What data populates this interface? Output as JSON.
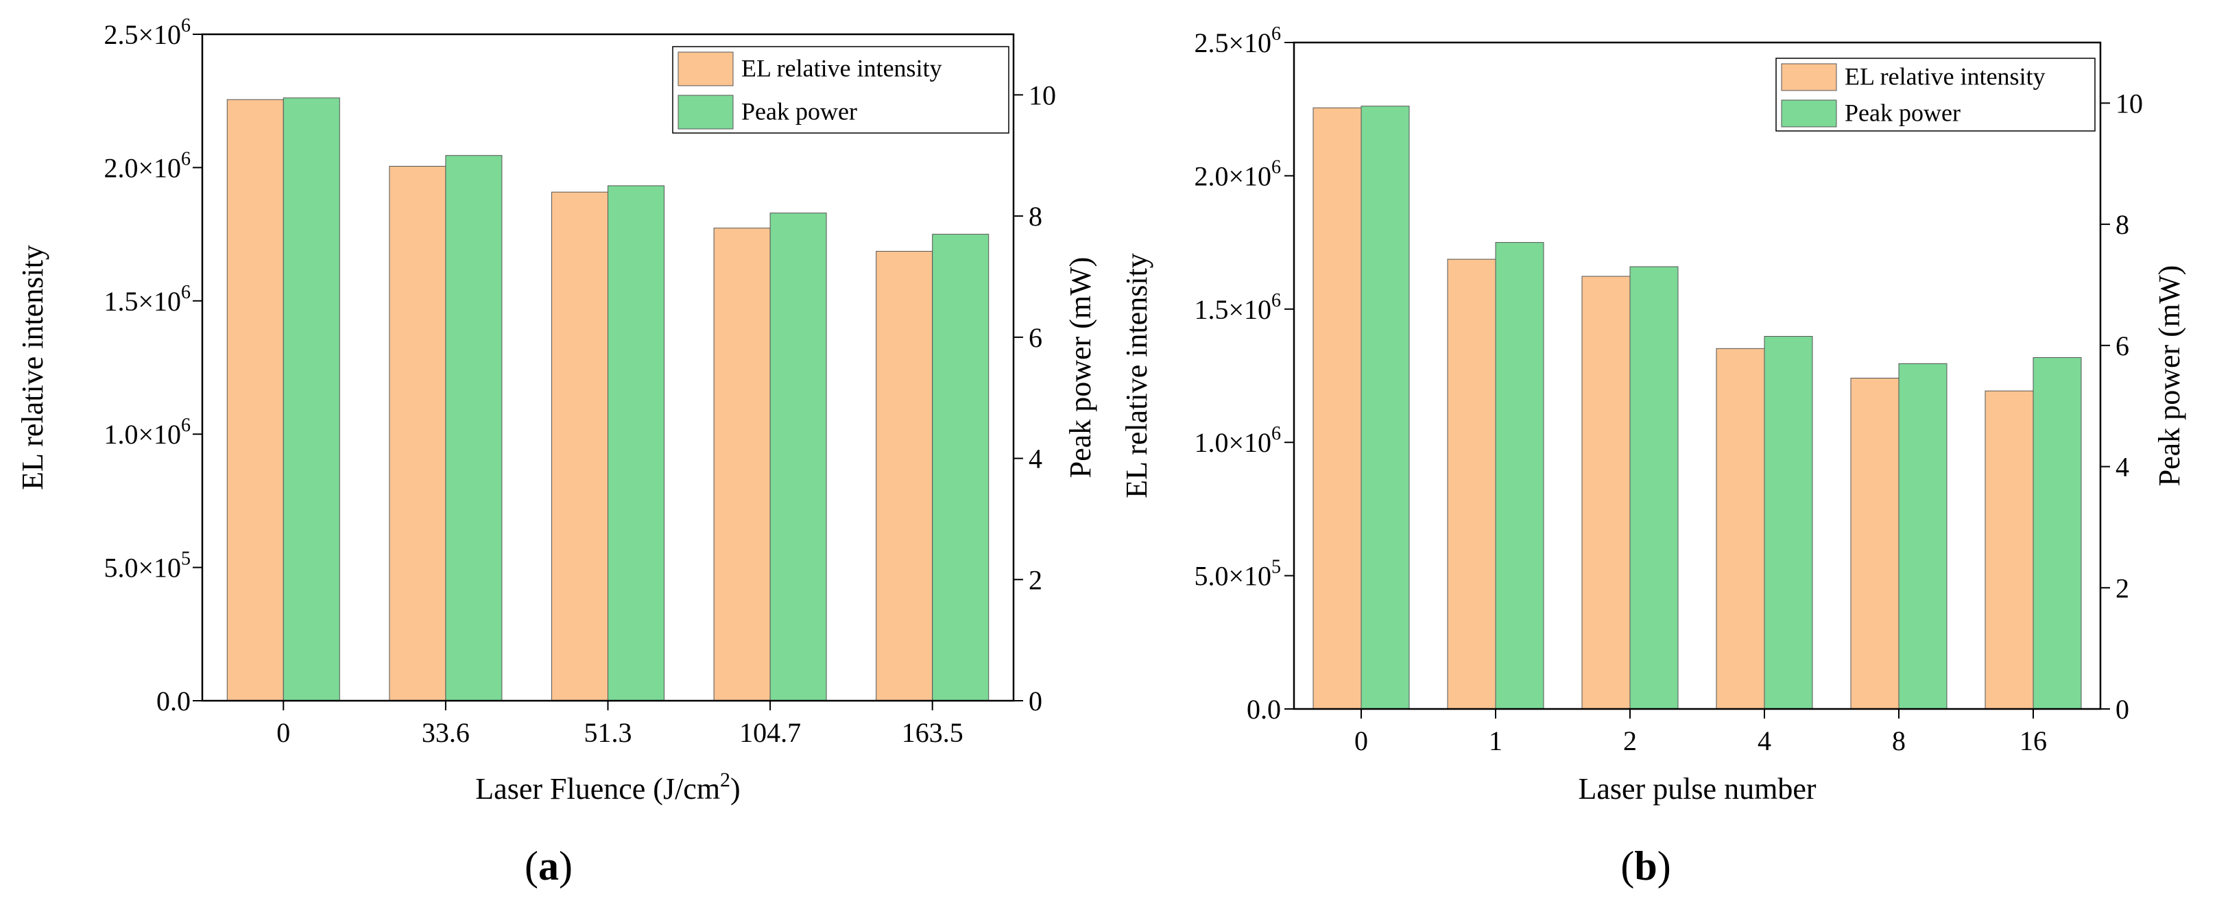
{
  "colors": {
    "el": "#fcc491",
    "peak": "#7cd996",
    "axis": "#000000"
  },
  "chart_data": [
    {
      "type": "bar",
      "panel_label": "a",
      "categories": [
        "0",
        "33.6",
        "51.3",
        "104.7",
        "163.5"
      ],
      "series": [
        {
          "name": "EL relative intensity",
          "axis": "left",
          "values": [
            2255000,
            2005000,
            1908000,
            1773000,
            1686000
          ]
        },
        {
          "name": "Peak power",
          "axis": "right",
          "values": [
            9.95,
            9.0,
            8.5,
            8.05,
            7.7
          ]
        }
      ],
      "xlabel": "Laser Fluence (J/cm",
      "xlabel_sup": "2",
      "xlabel_tail": ")",
      "ylabel": "EL relative intensity",
      "y2label": "Peak power (mW)",
      "ylim": [
        0,
        2500000
      ],
      "y2lim": [
        0,
        11
      ],
      "yticks": [
        {
          "value": 0,
          "label": "0.0"
        },
        {
          "value": 500000,
          "mant": "5.0×10",
          "exp": "5"
        },
        {
          "value": 1000000,
          "mant": "1.0×10",
          "exp": "6"
        },
        {
          "value": 1500000,
          "mant": "1.5×10",
          "exp": "6"
        },
        {
          "value": 2000000,
          "mant": "2.0×10",
          "exp": "6"
        },
        {
          "value": 2500000,
          "mant": "2.5×10",
          "exp": "6"
        }
      ],
      "y2ticks": [
        0,
        2,
        4,
        6,
        8,
        10
      ],
      "legend_position": "top-right"
    },
    {
      "type": "bar",
      "panel_label": "b",
      "categories": [
        "0",
        "1",
        "2",
        "4",
        "8",
        "16"
      ],
      "series": [
        {
          "name": "EL relative intensity",
          "axis": "left",
          "values": [
            2255000,
            1687000,
            1623000,
            1352000,
            1241000,
            1193000
          ]
        },
        {
          "name": "Peak power",
          "axis": "right",
          "values": [
            9.95,
            7.7,
            7.3,
            6.15,
            5.7,
            5.8
          ]
        }
      ],
      "xlabel": "Laser pulse number",
      "xlabel_sup": "",
      "xlabel_tail": "",
      "ylabel": "EL relative intensity",
      "y2label": "Peak power (mW)",
      "ylim": [
        0,
        2500000
      ],
      "y2lim": [
        0,
        11
      ],
      "yticks": [
        {
          "value": 0,
          "label": "0.0"
        },
        {
          "value": 500000,
          "mant": "5.0×10",
          "exp": "5"
        },
        {
          "value": 1000000,
          "mant": "1.0×10",
          "exp": "6"
        },
        {
          "value": 1500000,
          "mant": "1.5×10",
          "exp": "6"
        },
        {
          "value": 2000000,
          "mant": "2.0×10",
          "exp": "6"
        },
        {
          "value": 2500000,
          "mant": "2.5×10",
          "exp": "6"
        }
      ],
      "y2ticks": [
        0,
        2,
        4,
        6,
        8,
        10
      ],
      "legend_position": "top-right"
    }
  ]
}
